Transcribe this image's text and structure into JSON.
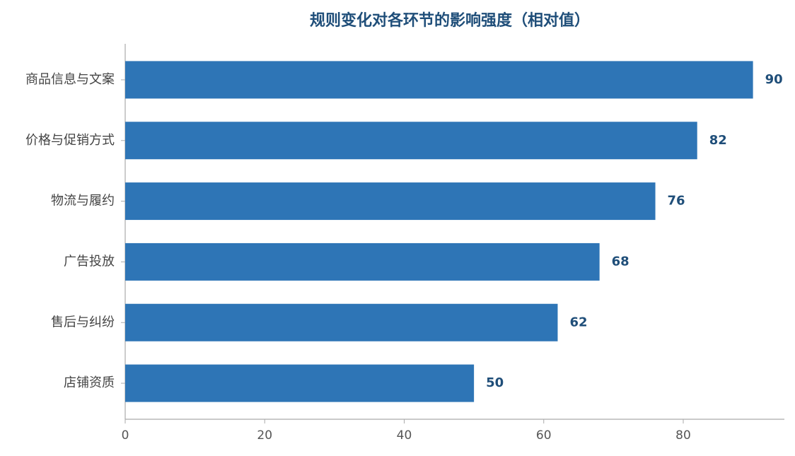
{
  "chart_data": {
    "type": "hbar",
    "title": "规则变化对各环节的影响强度（相对值）",
    "categories": [
      "商品信息与文案",
      "价格与促销方式",
      "物流与履约",
      "广告投放",
      "售后与纠纷",
      "店铺资质"
    ],
    "values": [
      90,
      82,
      76,
      68,
      62,
      50
    ],
    "color": "#2e75b6",
    "xlim": [
      0,
      94.5
    ],
    "xticks": [
      0,
      20,
      40,
      60,
      80
    ]
  }
}
